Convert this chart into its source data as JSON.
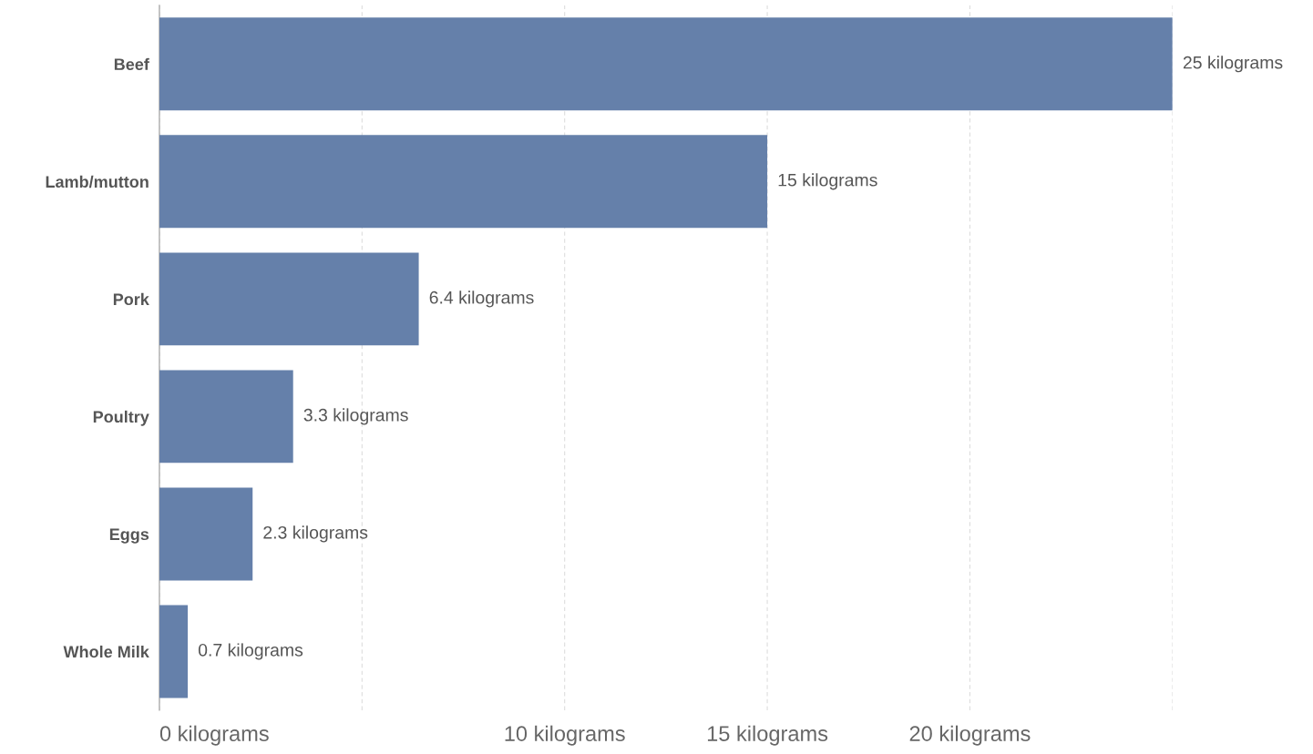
{
  "chart_data": {
    "type": "bar",
    "orientation": "horizontal",
    "categories": [
      "Beef",
      "Lamb/mutton",
      "Pork",
      "Poultry",
      "Eggs",
      "Whole Milk"
    ],
    "values": [
      25,
      15,
      6.4,
      3.3,
      2.3,
      0.7
    ],
    "value_labels": [
      "25 kilograms",
      "15 kilograms",
      "6.4 kilograms",
      "3.3 kilograms",
      "2.3 kilograms",
      "0.7 kilograms"
    ],
    "color": "#6580aa",
    "xlim": [
      0,
      25
    ],
    "xticks": [
      {
        "value": 0,
        "label": "0 kilograms"
      },
      {
        "value": 5,
        "label": null
      },
      {
        "value": 10,
        "label": "10 kilograms"
      },
      {
        "value": 15,
        "label": "15 kilograms"
      },
      {
        "value": 20,
        "label": "20 kilograms"
      },
      {
        "value": 25,
        "label": null
      }
    ],
    "grid": "x"
  }
}
